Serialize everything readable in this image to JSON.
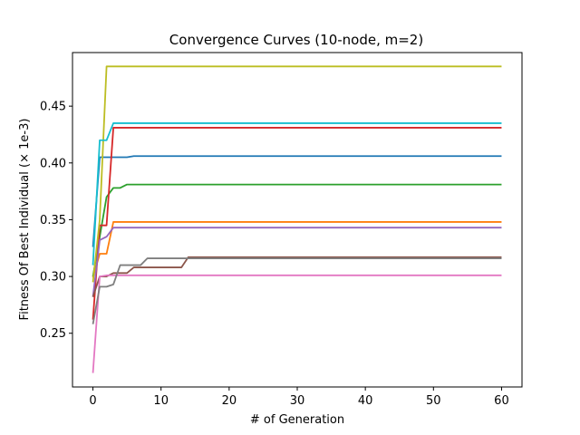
{
  "chart_data": {
    "type": "line",
    "title": "Convergence Curves (10-node, m=2)",
    "xlabel": "# of Generation",
    "ylabel": "Fitness Of Best Individual (× 1e-3)",
    "xlim": [
      -3,
      63
    ],
    "ylim": [
      0.2027,
      0.4972
    ],
    "xticks": [
      0,
      10,
      20,
      30,
      40,
      50,
      60
    ],
    "yticks": [
      0.25,
      0.3,
      0.35,
      0.4,
      0.45
    ],
    "ytick_labels": [
      "0.25",
      "0.30",
      "0.35",
      "0.40",
      "0.45"
    ],
    "grid": false,
    "legend": "none",
    "series": [
      {
        "color": "#1f77b4",
        "x": [
          0,
          1,
          2,
          3,
          4,
          5,
          6,
          60
        ],
        "y": [
          0.326,
          0.405,
          0.405,
          0.405,
          0.405,
          0.405,
          0.406,
          0.406
        ]
      },
      {
        "color": "#ff7f0e",
        "x": [
          0,
          1,
          2,
          3,
          60
        ],
        "y": [
          0.299,
          0.32,
          0.32,
          0.348,
          0.348
        ]
      },
      {
        "color": "#2ca02c",
        "x": [
          0,
          1,
          2,
          3,
          4,
          5,
          60
        ],
        "y": [
          0.3,
          0.335,
          0.37,
          0.378,
          0.378,
          0.381,
          0.381
        ]
      },
      {
        "color": "#d62728",
        "x": [
          0,
          1,
          2,
          3,
          60
        ],
        "y": [
          0.262,
          0.345,
          0.345,
          0.431,
          0.431
        ]
      },
      {
        "color": "#9467bd",
        "x": [
          0,
          1,
          2,
          3,
          60
        ],
        "y": [
          0.282,
          0.332,
          0.335,
          0.343,
          0.343
        ]
      },
      {
        "color": "#8c564b",
        "x": [
          0,
          1,
          2,
          3,
          4,
          5,
          6,
          13,
          14,
          60
        ],
        "y": [
          0.282,
          0.3,
          0.3,
          0.303,
          0.303,
          0.303,
          0.308,
          0.308,
          0.317,
          0.317
        ]
      },
      {
        "color": "#e377c2",
        "x": [
          0,
          1,
          2,
          60
        ],
        "y": [
          0.215,
          0.3,
          0.301,
          0.301
        ]
      },
      {
        "color": "#7f7f7f",
        "x": [
          0,
          1,
          2,
          3,
          4,
          5,
          6,
          7,
          8,
          13,
          14,
          60
        ],
        "y": [
          0.258,
          0.291,
          0.291,
          0.293,
          0.31,
          0.31,
          0.31,
          0.31,
          0.316,
          0.316,
          0.316,
          0.316
        ]
      },
      {
        "color": "#bcbd22",
        "x": [
          0,
          1,
          2,
          60
        ],
        "y": [
          0.295,
          0.35,
          0.485,
          0.485
        ]
      },
      {
        "color": "#17becf",
        "x": [
          0,
          1,
          2,
          3,
          60
        ],
        "y": [
          0.31,
          0.42,
          0.42,
          0.435,
          0.435
        ]
      }
    ]
  }
}
